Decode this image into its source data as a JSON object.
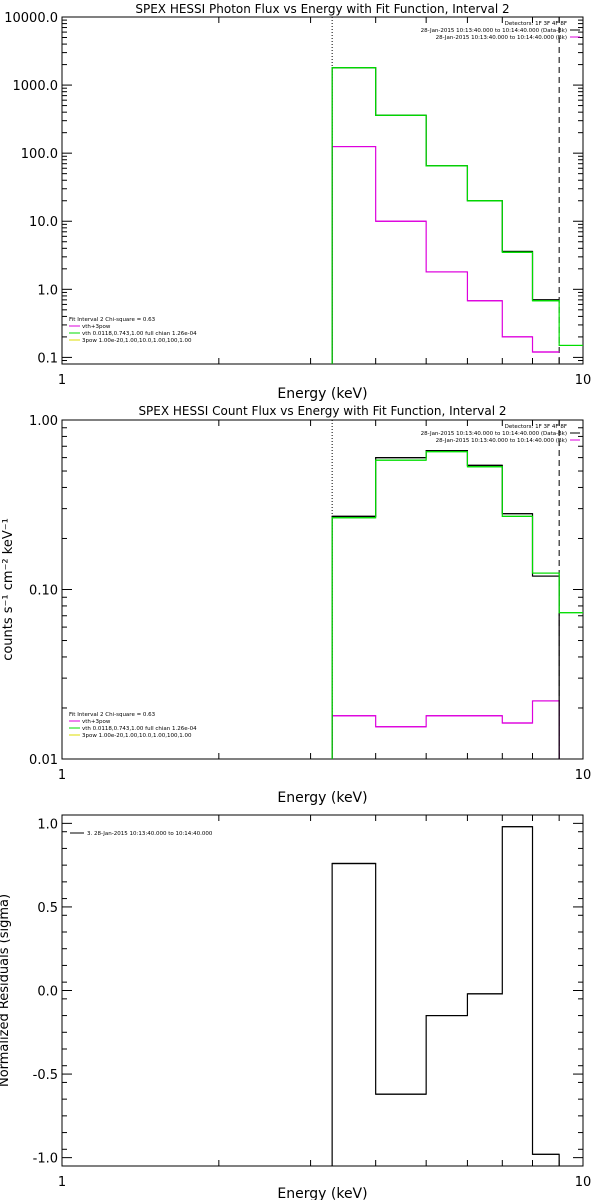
{
  "colors": {
    "axis": "#000000",
    "data": "#000000",
    "total": "#00dd00",
    "background": "#dd00dd",
    "dashed": "#000000"
  },
  "chart_data": [
    {
      "type": "line",
      "title": "SPEX HESSI Photon Flux vs Energy with Fit Function, Interval 2",
      "xlabel": "Energy (keV)",
      "ylabel": "",
      "xscale": "log",
      "yscale": "log",
      "xlim": [
        1,
        10
      ],
      "ylim": [
        0.08,
        10000
      ],
      "xticks": [
        {
          "v": 1,
          "label": "1"
        },
        {
          "v": 10,
          "label": "10"
        }
      ],
      "yticks": [
        {
          "v": 0.1,
          "label": "0.1"
        },
        {
          "v": 1,
          "label": "1.0"
        },
        {
          "v": 10,
          "label": "10.0"
        },
        {
          "v": 100,
          "label": "100.0"
        },
        {
          "v": 1000,
          "label": "1000.0"
        },
        {
          "v": 10000,
          "label": "10000.0"
        }
      ],
      "vlines": [
        {
          "x": 3.3,
          "style": "dotted"
        },
        {
          "x": 9.0,
          "style": "dashed"
        }
      ],
      "legend_top": {
        "placement": "top-right",
        "lines": [
          {
            "text": "Detectors: 1F 3F 4F 8F",
            "color": ""
          },
          {
            "text": "28-Jan-2015 10:13:40.000 to 10:14:40.000 (Data-Bk)",
            "color": "#000000"
          },
          {
            "text": "28-Jan-2015 10:13:40.000 to 10:14:40.000 (Bk)",
            "color": "#dd00dd"
          }
        ]
      },
      "legend_fit": {
        "placement": "bottom-left",
        "lines": [
          {
            "text": "Fit Interval 2   Chi-square = 0.63",
            "color": ""
          },
          {
            "text": "vth+3pow",
            "color": "#dd00dd"
          },
          {
            "text": "vth 0.0118,0.743,1.00  full chian 1.26e-04",
            "color": "#00dd00"
          },
          {
            "text": "3pow 1.00e-20,1.00,10.0,1.00,100,1.00",
            "color": "#dddd00"
          }
        ]
      },
      "series": [
        {
          "role": "data",
          "edges": [
            3.3,
            4.0,
            5.0,
            6.0,
            7.0,
            8.0,
            9.0
          ],
          "values": [
            1800,
            360,
            65,
            20,
            3.6,
            0.7
          ]
        },
        {
          "role": "total",
          "edges": [
            3.3,
            4.0,
            5.0,
            6.0,
            7.0,
            8.0,
            9.0,
            10.0
          ],
          "values": [
            1800,
            360,
            65,
            20,
            3.5,
            0.68,
            0.15
          ]
        },
        {
          "role": "background",
          "edges": [
            3.3,
            4.0,
            5.0,
            6.0,
            7.0,
            8.0,
            9.0
          ],
          "values": [
            125,
            10,
            1.8,
            0.68,
            0.2,
            0.12
          ]
        }
      ]
    },
    {
      "type": "line",
      "title": "SPEX HESSI Count Flux vs Energy with Fit Function, Interval 2",
      "xlabel": "Energy (keV)",
      "ylabel": "counts s⁻¹ cm⁻² keV⁻¹",
      "xscale": "log",
      "yscale": "log",
      "xlim": [
        1,
        10
      ],
      "ylim": [
        0.01,
        1.0
      ],
      "xticks": [
        {
          "v": 1,
          "label": "1"
        },
        {
          "v": 10,
          "label": "10"
        }
      ],
      "yticks": [
        {
          "v": 0.01,
          "label": "0.01"
        },
        {
          "v": 0.1,
          "label": "0.10"
        },
        {
          "v": 1,
          "label": "1.00"
        }
      ],
      "vlines": [
        {
          "x": 3.3,
          "style": "dotted"
        },
        {
          "x": 9.0,
          "style": "dashed"
        }
      ],
      "legend_top": {
        "placement": "top-right",
        "lines": [
          {
            "text": "Detectors: 1F 3F 4F 8F",
            "color": ""
          },
          {
            "text": "28-Jan-2015 10:13:40.000 to 10:14:40.000 (Data-Bk)",
            "color": "#000000"
          },
          {
            "text": "28-Jan-2015 10:13:40.000 to 10:14:40.000 (Bk)",
            "color": "#dd00dd"
          }
        ]
      },
      "legend_fit": {
        "placement": "bottom-left",
        "lines": [
          {
            "text": "Fit Interval 2   Chi-square = 0.63",
            "color": ""
          },
          {
            "text": "vth+3pow",
            "color": "#dd00dd"
          },
          {
            "text": "vth 0.0118,0.743,1.00  full chian 1.26e-04",
            "color": "#00dd00"
          },
          {
            "text": "3pow 1.00e-20,1.00,10.0,1.00,100,1.00",
            "color": "#dddd00"
          }
        ]
      },
      "series": [
        {
          "role": "data",
          "edges": [
            3.3,
            4.0,
            5.0,
            6.0,
            7.0,
            8.0,
            9.0
          ],
          "values": [
            0.27,
            0.6,
            0.66,
            0.54,
            0.28,
            0.12
          ],
          "drop_to_floor": true
        },
        {
          "role": "total",
          "edges": [
            3.3,
            4.0,
            5.0,
            6.0,
            7.0,
            8.0,
            9.0,
            10.0
          ],
          "values": [
            0.265,
            0.58,
            0.65,
            0.53,
            0.27,
            0.125,
            0.073
          ]
        },
        {
          "role": "background",
          "edges": [
            3.3,
            4.0,
            5.0,
            6.0,
            7.0,
            8.0,
            9.0
          ],
          "values": [
            0.018,
            0.0155,
            0.018,
            0.018,
            0.0163,
            0.022
          ],
          "drop_to_floor": true
        }
      ]
    },
    {
      "type": "line",
      "title": "",
      "xlabel": "Energy (keV)",
      "ylabel": "Normalized Residuals (sigma)",
      "xscale": "log",
      "yscale": "linear",
      "xlim": [
        1,
        10
      ],
      "ylim": [
        -1.05,
        1.05
      ],
      "xticks": [
        {
          "v": 1,
          "label": "1"
        },
        {
          "v": 10,
          "label": "10"
        }
      ],
      "yticks": [
        {
          "v": -1.0,
          "label": "-1.0"
        },
        {
          "v": -0.5,
          "label": "-0.5"
        },
        {
          "v": 0.0,
          "label": "0.0"
        },
        {
          "v": 0.5,
          "label": "0.5"
        },
        {
          "v": 1.0,
          "label": "1.0"
        }
      ],
      "vlines": [],
      "legend_top": {
        "placement": "top-left",
        "lines": [
          {
            "text": "3. 28-Jan-2015 10:13:40.000 to 10:14:40.000",
            "color": "#000000"
          }
        ]
      },
      "legend_fit": {
        "placement": "",
        "lines": []
      },
      "series": [
        {
          "role": "data",
          "edges": [
            3.3,
            4.0,
            5.0,
            6.0,
            7.0,
            8.0,
            9.0
          ],
          "values": [
            0.76,
            -0.62,
            -0.15,
            -0.02,
            0.98,
            -0.98
          ],
          "drop_to_floor": true
        }
      ]
    }
  ]
}
